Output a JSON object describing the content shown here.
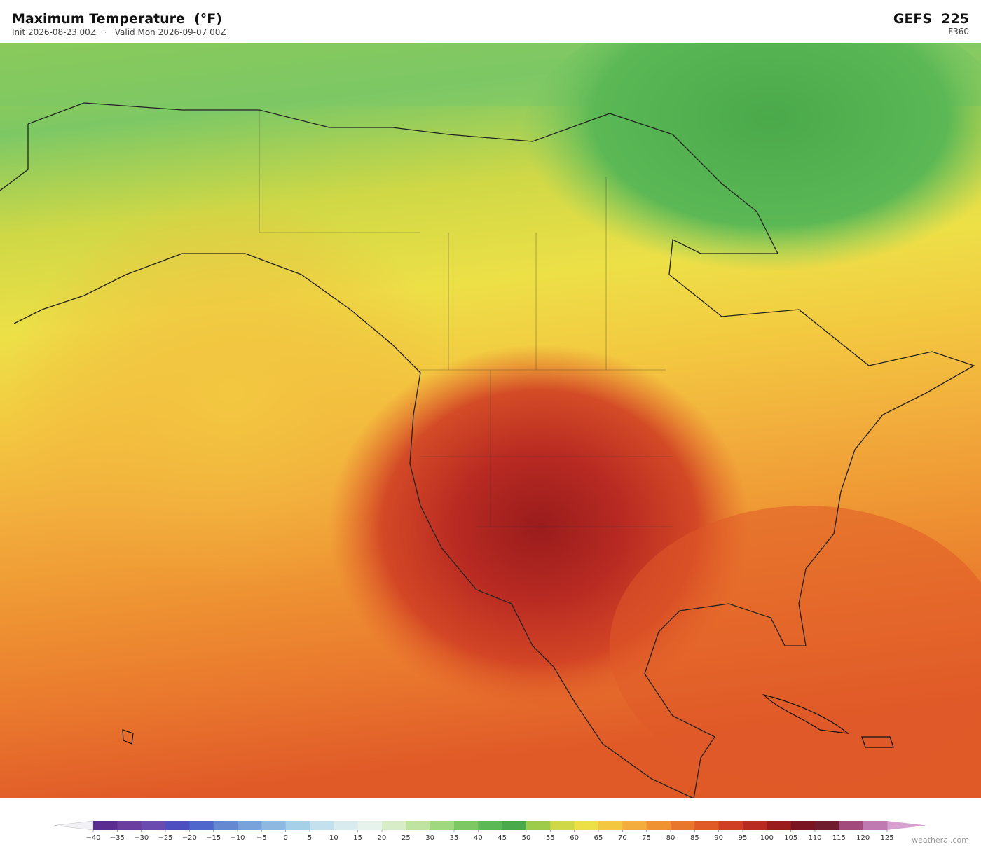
{
  "header": {
    "title": "Maximum Temperature  (°F)",
    "subtitle": "Init 2026-08-23 00Z   ·   Valid Mon 2026-09-07 00Z",
    "model": "GEFS  225",
    "forecast_hour": "F360"
  },
  "colorbar": {
    "ticks": [
      {
        "value": -40,
        "label": "−40"
      },
      {
        "value": -35,
        "label": "−35"
      },
      {
        "value": -30,
        "label": "−30"
      },
      {
        "value": -25,
        "label": "−25"
      },
      {
        "value": -20,
        "label": "−20"
      },
      {
        "value": -15,
        "label": "−15"
      },
      {
        "value": -10,
        "label": "−10"
      },
      {
        "value": -5,
        "label": "−5"
      },
      0,
      5,
      10,
      15,
      20,
      25,
      30,
      35,
      40,
      45,
      50,
      55,
      60,
      65,
      70,
      75,
      80,
      85,
      90,
      95,
      100,
      105,
      110,
      115,
      120,
      125
    ],
    "colors": [
      "#5b2d90",
      "#6a3d9e",
      "#6a4aaf",
      "#4d4fc0",
      "#4f66cc",
      "#6688d0",
      "#7aa2da",
      "#8fb8e0",
      "#a6cfe8",
      "#c2e0ee",
      "#d8ecf0",
      "#e6f3ec",
      "#d6edc8",
      "#bfe3a0",
      "#a0d880",
      "#7dc865",
      "#5bb855",
      "#4aa94a",
      "#9ccc4a",
      "#cfd846",
      "#ede047",
      "#f3c840",
      "#f2ad3c",
      "#ee9232",
      "#e9762d",
      "#e05a28",
      "#d03f24",
      "#b82a22",
      "#9a1c1c",
      "#7a1420",
      "#6e1c2e",
      "#a24a7e",
      "#c07ab2"
    ],
    "under_color": "#f2f2f6",
    "over_color": "#d8a0d0"
  },
  "watermark": "weatherai.com"
}
